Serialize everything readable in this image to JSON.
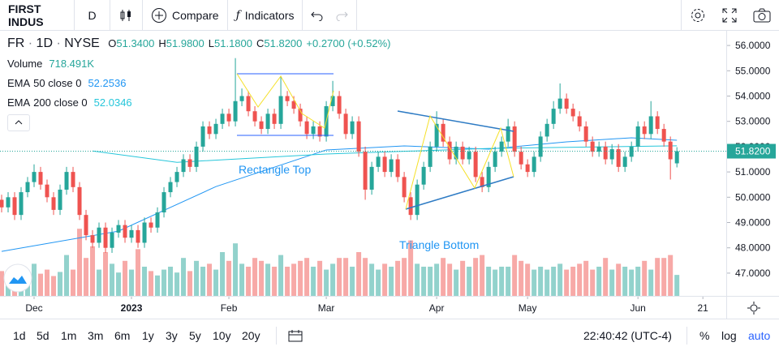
{
  "toolbar": {
    "symbol": "FIRST INDUS",
    "interval": "D",
    "compare": "Compare",
    "indicators": "Indicators"
  },
  "chart_data": {
    "type": "candlestick",
    "title": "FR",
    "interval": "1D",
    "exchange": "NYSE",
    "ohlc_labels": [
      "O",
      "H",
      "L",
      "C"
    ],
    "ohlc_values": [
      "51.3400",
      "51.9800",
      "51.1800",
      "51.8200"
    ],
    "change": "+0.2700 (+0.52%)",
    "indicators": [
      {
        "name": "Volume",
        "value": "718.491K"
      },
      {
        "name": "EMA",
        "params": "50 close 0",
        "value": "52.2536",
        "color": "#2196f3"
      },
      {
        "name": "EMA",
        "params": "200 close 0",
        "value": "52.0346",
        "color": "#26c6da"
      }
    ],
    "up_color": "#26a69a",
    "down_color": "#ef5350",
    "open": [
      49.9,
      49.6,
      50.0,
      49.3,
      50.2,
      50.6,
      51.0,
      50.5,
      50.0,
      49.5,
      50.3,
      51.0,
      50.4,
      49.3,
      48.5,
      48.2,
      48.8,
      48.0,
      48.6,
      48.9,
      48.4,
      48.7,
      48.2,
      49.0,
      48.8,
      49.4,
      50.2,
      50.6,
      51.0,
      51.5,
      51.2,
      52.0,
      52.8,
      52.5,
      52.9,
      53.3,
      53.0,
      53.8,
      54.0,
      53.4,
      53.0,
      52.7,
      53.3,
      52.9,
      54.0,
      53.8,
      53.5,
      53.0,
      52.5,
      52.8,
      52.4,
      53.6,
      54.0,
      53.3,
      52.5,
      53.0,
      51.8,
      50.3,
      51.2,
      51.6,
      51.0,
      51.5,
      50.8,
      50.0,
      49.3,
      50.5,
      51.2,
      52.0,
      52.9,
      52.2,
      51.5,
      52.0,
      51.5,
      51.8,
      50.8,
      50.4,
      51.2,
      51.8,
      52.2,
      52.8,
      51.8,
      51.3,
      51.0,
      51.6,
      52.4,
      52.9,
      53.5,
      53.9,
      53.5,
      53.2,
      52.8,
      52.2,
      51.8,
      52.0,
      51.5,
      51.9,
      51.2,
      51.6,
      52.0,
      52.8,
      52.5,
      53.2,
      52.7,
      52.2,
      51.34
    ],
    "high": [
      50.1,
      50.2,
      50.2,
      50.4,
      50.8,
      51.3,
      51.2,
      50.7,
      50.2,
      50.5,
      51.2,
      51.2,
      50.6,
      49.5,
      48.7,
      49.0,
      49.0,
      48.8,
      49.1,
      49.1,
      48.9,
      48.9,
      49.2,
      49.2,
      49.6,
      50.4,
      50.8,
      51.2,
      51.7,
      51.7,
      52.2,
      53.0,
      53.0,
      53.1,
      53.5,
      53.5,
      55.5,
      54.3,
      54.2,
      53.6,
      53.2,
      53.5,
      53.5,
      54.8,
      54.2,
      54.0,
      53.7,
      53.2,
      53.0,
      53.0,
      53.8,
      54.6,
      54.2,
      53.5,
      53.2,
      53.2,
      52.0,
      51.4,
      51.8,
      51.8,
      51.7,
      51.7,
      51.0,
      50.2,
      50.7,
      51.4,
      52.2,
      53.4,
      53.1,
      52.4,
      52.2,
      52.2,
      52.0,
      52.0,
      51.0,
      51.4,
      52.0,
      52.4,
      53.1,
      53.0,
      52.0,
      51.5,
      51.8,
      52.6,
      53.1,
      53.8,
      54.5,
      54.1,
      53.7,
      53.4,
      53.0,
      52.4,
      52.2,
      52.2,
      52.1,
      52.1,
      51.8,
      52.2,
      53.0,
      53.0,
      53.8,
      53.4,
      52.9,
      52.4,
      51.98
    ],
    "low": [
      49.4,
      49.4,
      49.1,
      49.1,
      50.0,
      50.4,
      50.3,
      49.8,
      49.3,
      49.3,
      50.1,
      50.2,
      49.1,
      48.3,
      48.0,
      48.0,
      47.8,
      47.8,
      48.4,
      48.2,
      48.2,
      48.0,
      48.0,
      48.6,
      48.6,
      49.2,
      50.0,
      50.4,
      50.8,
      51.0,
      51.0,
      51.8,
      52.3,
      52.3,
      52.7,
      52.8,
      52.8,
      53.6,
      53.2,
      52.8,
      52.5,
      52.5,
      52.7,
      52.7,
      53.6,
      53.3,
      52.8,
      52.3,
      52.3,
      52.2,
      52.2,
      53.4,
      53.1,
      52.3,
      52.3,
      51.6,
      49.9,
      50.1,
      51.0,
      50.8,
      50.8,
      50.6,
      49.8,
      49.1,
      49.1,
      50.3,
      51.0,
      51.8,
      52.0,
      51.3,
      51.3,
      51.3,
      51.3,
      50.6,
      50.2,
      50.2,
      51.0,
      51.6,
      52.0,
      51.6,
      51.1,
      50.8,
      50.8,
      51.4,
      52.2,
      52.7,
      53.3,
      53.3,
      53.0,
      52.6,
      52.0,
      51.6,
      51.6,
      51.3,
      51.3,
      51.0,
      51.0,
      51.4,
      51.8,
      52.3,
      52.3,
      52.5,
      52.0,
      50.7,
      51.18
    ],
    "close": [
      49.6,
      50.0,
      49.3,
      50.2,
      50.6,
      51.0,
      50.5,
      50.0,
      49.5,
      50.3,
      51.0,
      50.4,
      49.3,
      48.5,
      48.2,
      48.8,
      48.0,
      48.6,
      48.9,
      48.4,
      48.7,
      48.2,
      49.0,
      48.8,
      49.4,
      50.2,
      50.6,
      51.0,
      51.5,
      51.2,
      52.0,
      52.8,
      52.5,
      52.9,
      53.3,
      53.0,
      53.8,
      54.0,
      53.4,
      53.0,
      52.7,
      53.3,
      52.9,
      54.0,
      53.8,
      53.5,
      53.0,
      52.5,
      52.8,
      52.4,
      53.6,
      54.0,
      53.3,
      52.5,
      53.0,
      51.8,
      50.3,
      51.2,
      51.6,
      51.0,
      51.5,
      50.8,
      50.0,
      49.3,
      50.5,
      51.2,
      52.0,
      52.9,
      52.2,
      51.5,
      52.0,
      51.5,
      51.8,
      50.8,
      50.4,
      51.2,
      51.8,
      52.2,
      52.8,
      51.8,
      51.3,
      51.0,
      51.6,
      52.4,
      52.9,
      53.5,
      53.9,
      53.5,
      53.2,
      52.8,
      52.2,
      51.8,
      52.0,
      51.5,
      51.9,
      51.2,
      51.6,
      52.0,
      52.8,
      52.5,
      53.2,
      52.7,
      52.2,
      51.5,
      51.82
    ],
    "volume": [
      850,
      700,
      900,
      780,
      820,
      1100,
      760,
      900,
      680,
      820,
      1400,
      900,
      2300,
      1300,
      1700,
      900,
      1500,
      1100,
      800,
      1200,
      900,
      1600,
      1000,
      850,
      700,
      900,
      1000,
      800,
      1300,
      850,
      1200,
      1000,
      1100,
      900,
      1500,
      1200,
      1800,
      1100,
      1000,
      1300,
      1200,
      1100,
      1000,
      1400,
      1000,
      1100,
      1200,
      1300,
      1000,
      1200,
      900,
      1100,
      1300,
      1300,
      1000,
      1500,
      1300,
      1100,
      900,
      1100,
      1000,
      1200,
      1300,
      1900,
      1100,
      1000,
      1000,
      1100,
      1300,
      1100,
      900,
      1200,
      1000,
      1300,
      1400,
      1000,
      900,
      1000,
      1000,
      1400,
      1200,
      1100,
      900,
      1000,
      900,
      1000,
      1100,
      900,
      1000,
      1100,
      1200,
      900,
      1000,
      1300,
      900,
      1100,
      1000,
      900,
      1000,
      1200,
      900,
      1300,
      1300,
      1400,
      718.491
    ],
    "volume_lim": [
      0,
      2500
    ],
    "ema": [
      {
        "x": [
          0,
          18,
          33,
          50,
          62,
          75,
          87,
          97,
          104
        ],
        "values": [
          47.86,
          48.66,
          50.42,
          51.87,
          52.03,
          51.9,
          52.19,
          52.35,
          52.2536
        ],
        "color": "#2196f3"
      },
      {
        "x": [
          14,
          27,
          50,
          75,
          104
        ],
        "values": [
          51.83,
          51.38,
          51.71,
          51.93,
          52.0346
        ],
        "color": "#26c6da"
      }
    ],
    "last_price_label": "51.8200",
    "xlim": [
      -0.25,
      111.6
    ],
    "ylim": [
      46.1,
      56.58
    ],
    "xticks": [
      {
        "value": 5,
        "label": "Dec"
      },
      {
        "value": 20,
        "label": "2023"
      },
      {
        "value": 35,
        "label": "Feb"
      },
      {
        "value": 50,
        "label": "Mar"
      },
      {
        "value": 67,
        "label": "Apr"
      },
      {
        "value": 81,
        "label": "May"
      },
      {
        "value": 98,
        "label": "Jun"
      },
      {
        "value": 108,
        "label": "21"
      }
    ],
    "yticks": [
      {
        "value": 56,
        "label": "56.0000"
      },
      {
        "value": 55,
        "label": "55.0000"
      },
      {
        "value": 54,
        "label": "54.0000"
      },
      {
        "value": 53,
        "label": "53.0000"
      },
      {
        "value": 52,
        "label": "52.0000"
      },
      {
        "value": 51,
        "label": "51.0000"
      },
      {
        "value": 50,
        "label": "50.0000"
      },
      {
        "value": 49,
        "label": "49.0000"
      },
      {
        "value": 48,
        "label": "48.0000"
      },
      {
        "value": 47,
        "label": "47.0000"
      }
    ],
    "annotations": [
      "Rectangle Top",
      "Triangle Bottom"
    ]
  },
  "bottom_bar": {
    "ranges": [
      "1d",
      "5d",
      "1m",
      "3m",
      "6m",
      "1y",
      "3y",
      "5y",
      "10y",
      "20y"
    ],
    "time": "22:40:42 (UTC-4)",
    "percent": "%",
    "log": "log",
    "auto": "auto"
  }
}
